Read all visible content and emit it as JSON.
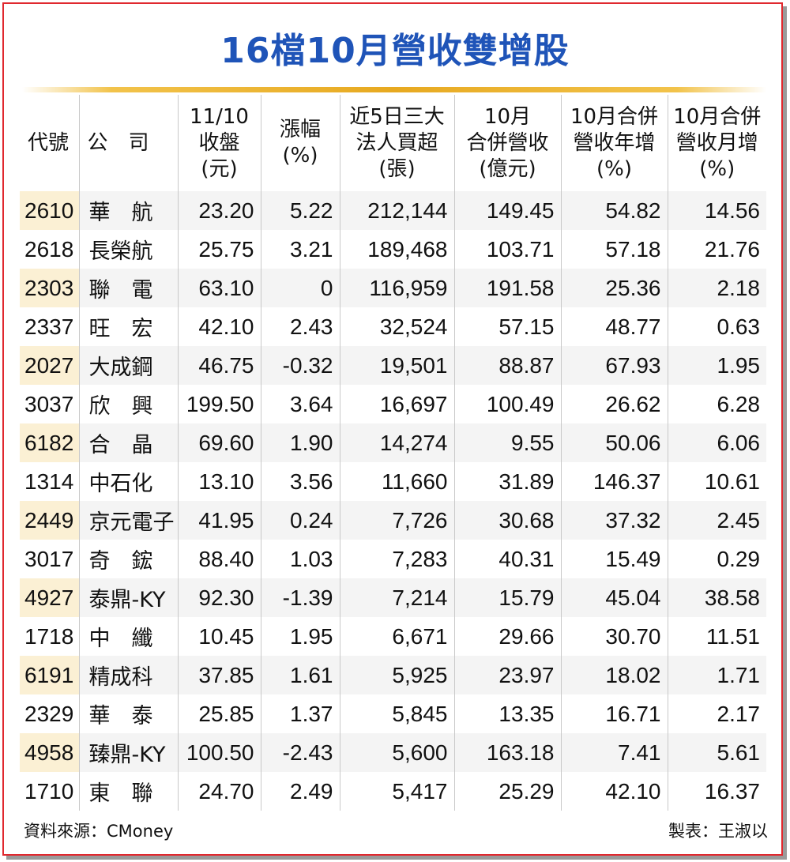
{
  "title": "16檔10月營收雙增股",
  "headers": [
    {
      "lines": [
        "代號"
      ]
    },
    {
      "lines": [
        "公　司"
      ]
    },
    {
      "lines": [
        "11/10",
        "收盤",
        "(元)"
      ]
    },
    {
      "lines": [
        "漲幅",
        "(%)"
      ]
    },
    {
      "lines": [
        "近5日三大",
        "法人買超",
        "(張)"
      ]
    },
    {
      "lines": [
        "10月",
        "合併營收",
        "(億元)"
      ]
    },
    {
      "lines": [
        "10月合併",
        "營收年增",
        "(%)"
      ]
    },
    {
      "lines": [
        "10月合併",
        "營收月增",
        "(%)"
      ]
    }
  ],
  "rows": [
    {
      "code": "2610",
      "name": "華　航",
      "close": "23.20",
      "change": "5.22",
      "net_buy": "212,144",
      "revenue": "149.45",
      "yoy": "54.82",
      "mom": "14.56"
    },
    {
      "code": "2618",
      "name": "長榮航",
      "close": "25.75",
      "change": "3.21",
      "net_buy": "189,468",
      "revenue": "103.71",
      "yoy": "57.18",
      "mom": "21.76"
    },
    {
      "code": "2303",
      "name": "聯　電",
      "close": "63.10",
      "change": "0",
      "net_buy": "116,959",
      "revenue": "191.58",
      "yoy": "25.36",
      "mom": "2.18"
    },
    {
      "code": "2337",
      "name": "旺　宏",
      "close": "42.10",
      "change": "2.43",
      "net_buy": "32,524",
      "revenue": "57.15",
      "yoy": "48.77",
      "mom": "0.63"
    },
    {
      "code": "2027",
      "name": "大成鋼",
      "close": "46.75",
      "change": "-0.32",
      "net_buy": "19,501",
      "revenue": "88.87",
      "yoy": "67.93",
      "mom": "1.95"
    },
    {
      "code": "3037",
      "name": "欣　興",
      "close": "199.50",
      "change": "3.64",
      "net_buy": "16,697",
      "revenue": "100.49",
      "yoy": "26.62",
      "mom": "6.28"
    },
    {
      "code": "6182",
      "name": "合　晶",
      "close": "69.60",
      "change": "1.90",
      "net_buy": "14,274",
      "revenue": "9.55",
      "yoy": "50.06",
      "mom": "6.06"
    },
    {
      "code": "1314",
      "name": "中石化",
      "close": "13.10",
      "change": "3.56",
      "net_buy": "11,660",
      "revenue": "31.89",
      "yoy": "146.37",
      "mom": "10.61"
    },
    {
      "code": "2449",
      "name": "京元電子",
      "close": "41.95",
      "change": "0.24",
      "net_buy": "7,726",
      "revenue": "30.68",
      "yoy": "37.32",
      "mom": "2.45"
    },
    {
      "code": "3017",
      "name": "奇　鋐",
      "close": "88.40",
      "change": "1.03",
      "net_buy": "7,283",
      "revenue": "40.31",
      "yoy": "15.49",
      "mom": "0.29"
    },
    {
      "code": "4927",
      "name": "泰鼎-KY",
      "close": "92.30",
      "change": "-1.39",
      "net_buy": "7,214",
      "revenue": "15.79",
      "yoy": "45.04",
      "mom": "38.58"
    },
    {
      "code": "1718",
      "name": "中　纖",
      "close": "10.45",
      "change": "1.95",
      "net_buy": "6,671",
      "revenue": "29.66",
      "yoy": "30.70",
      "mom": "11.51"
    },
    {
      "code": "6191",
      "name": "精成科",
      "close": "37.85",
      "change": "1.61",
      "net_buy": "5,925",
      "revenue": "23.97",
      "yoy": "18.02",
      "mom": "1.71"
    },
    {
      "code": "2329",
      "name": "華　泰",
      "close": "25.85",
      "change": "1.37",
      "net_buy": "5,845",
      "revenue": "13.35",
      "yoy": "16.71",
      "mom": "2.17"
    },
    {
      "code": "4958",
      "name": "臻鼎-KY",
      "close": "100.50",
      "change": "-2.43",
      "net_buy": "5,600",
      "revenue": "163.18",
      "yoy": "7.41",
      "mom": "5.61"
    },
    {
      "code": "1710",
      "name": "東　聯",
      "close": "24.70",
      "change": "2.49",
      "net_buy": "5,417",
      "revenue": "25.29",
      "yoy": "42.10",
      "mom": "16.37"
    }
  ],
  "footer": {
    "source": "資料來源：CMoney",
    "maker": "製表：王淑以"
  },
  "colors": {
    "title": "#1f54b8",
    "frame": "#e0282e",
    "gold_rule": "#e7a920",
    "code_shade": "#fbf0d4",
    "row_shade": "#f4f4f4"
  }
}
